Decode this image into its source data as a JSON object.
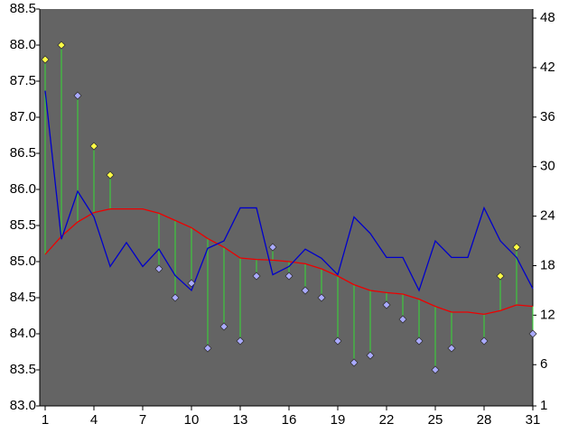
{
  "chart_data": {
    "type": "line",
    "x": [
      1,
      2,
      3,
      4,
      5,
      6,
      7,
      8,
      9,
      10,
      11,
      12,
      13,
      14,
      15,
      16,
      17,
      18,
      19,
      20,
      21,
      22,
      23,
      24,
      25,
      26,
      27,
      28,
      29,
      30,
      31
    ],
    "xlim": [
      1,
      31
    ],
    "xticks": [
      1,
      4,
      7,
      10,
      13,
      16,
      19,
      22,
      25,
      28,
      31
    ],
    "ylim": [
      83,
      88.5
    ],
    "yticks": [
      {
        "value": 83,
        "label": "83.0"
      },
      83.5,
      {
        "value": 84,
        "label": "84.0"
      },
      84.5,
      {
        "value": 85,
        "label": "85.0"
      },
      85.5,
      {
        "value": 86,
        "label": "86.0"
      },
      86.5,
      {
        "value": 87,
        "label": "87.0"
      },
      87.5,
      {
        "value": 88,
        "label": "88.0"
      },
      88.5
    ],
    "y2lim": [
      1,
      49.1
    ],
    "y2ticks": [
      1,
      6,
      12,
      18,
      24,
      30,
      36,
      42,
      48
    ],
    "background": "#646464",
    "stem_color": "#33dd33",
    "series": [
      {
        "type": "scatter",
        "color": "#ffff44",
        "values": [
          87.8,
          88.0,
          null,
          86.6,
          86.2,
          null,
          null,
          null,
          null,
          null,
          null,
          null,
          null,
          null,
          null,
          null,
          null,
          null,
          null,
          null,
          null,
          null,
          null,
          null,
          null,
          null,
          null,
          null,
          84.8,
          85.2,
          null
        ]
      },
      {
        "type": "scatter",
        "color": "#aaaaff",
        "values": [
          null,
          null,
          87.3,
          null,
          null,
          null,
          null,
          84.9,
          84.5,
          84.7,
          83.8,
          84.1,
          83.9,
          84.8,
          85.2,
          84.8,
          84.6,
          84.5,
          83.9,
          83.6,
          83.7,
          84.4,
          84.2,
          83.9,
          83.5,
          83.8,
          null,
          83.9,
          null,
          null,
          84.0
        ]
      },
      {
        "type": "line",
        "color": "#ee0000",
        "values": [
          85.1,
          85.35,
          85.55,
          85.68,
          85.73,
          85.73,
          85.73,
          85.67,
          85.57,
          85.47,
          85.32,
          85.2,
          85.05,
          85.03,
          85.02,
          85.0,
          84.97,
          84.9,
          84.8,
          84.68,
          84.6,
          84.57,
          84.55,
          84.48,
          84.38,
          84.3,
          84.3,
          84.27,
          84.32,
          84.4,
          84.38
        ]
      },
      {
        "type": "line",
        "color": "#0000cc",
        "axis": "y2",
        "values": [
          39.2,
          21.2,
          27,
          23.9,
          17.9,
          20.8,
          17.9,
          20,
          16.8,
          15,
          20.1,
          21,
          25,
          25,
          16.9,
          17.9,
          20,
          18.9,
          16.9,
          23.9,
          21.9,
          19,
          19,
          15,
          21,
          19,
          19,
          25,
          21,
          19,
          15.2
        ]
      }
    ]
  }
}
